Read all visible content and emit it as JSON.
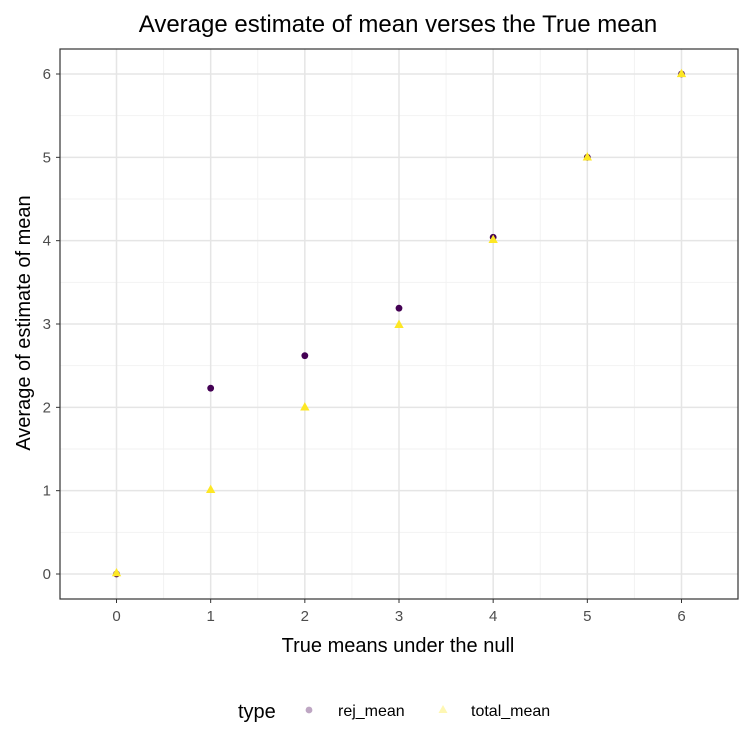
{
  "chart_data": {
    "type": "scatter",
    "title": "Average estimate of mean verses the True mean",
    "xlabel": "True means under the null",
    "ylabel": "Average of estimate of mean",
    "xlim": [
      -0.6,
      6.6
    ],
    "ylim": [
      -0.3,
      6.3
    ],
    "xticks": [
      "0",
      "1",
      "2",
      "3",
      "4",
      "5",
      "6"
    ],
    "yticks": [
      "0",
      "1",
      "2",
      "3",
      "4",
      "5",
      "6"
    ],
    "grid": true,
    "legend": {
      "title": "type",
      "position": "bottom"
    },
    "series": [
      {
        "name": "rej_mean",
        "shape": "circle",
        "color": "#440154",
        "x": [
          0,
          1,
          2,
          3,
          4,
          5,
          6
        ],
        "y": [
          0.0,
          2.23,
          2.62,
          3.19,
          4.04,
          5.0,
          6.0
        ]
      },
      {
        "name": "total_mean",
        "shape": "triangle",
        "color": "#FDE725",
        "x": [
          0,
          1,
          2,
          3,
          4,
          5,
          6
        ],
        "y": [
          0.01,
          1.01,
          2.0,
          2.99,
          4.01,
          5.0,
          6.0
        ]
      }
    ]
  }
}
